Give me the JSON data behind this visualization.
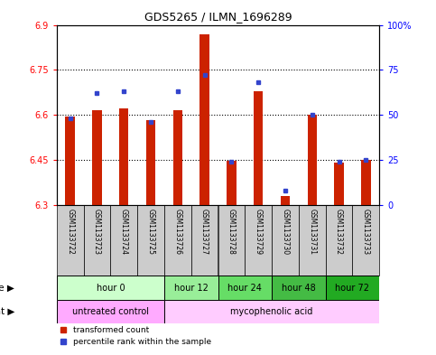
{
  "title": "GDS5265 / ILMN_1696289",
  "samples": [
    "GSM1133722",
    "GSM1133723",
    "GSM1133724",
    "GSM1133725",
    "GSM1133726",
    "GSM1133727",
    "GSM1133728",
    "GSM1133729",
    "GSM1133730",
    "GSM1133731",
    "GSM1133732",
    "GSM1133733"
  ],
  "red_values": [
    6.595,
    6.615,
    6.622,
    6.583,
    6.617,
    6.868,
    6.448,
    6.678,
    6.33,
    6.6,
    6.443,
    6.452
  ],
  "blue_values": [
    48,
    62,
    63,
    46,
    63,
    72,
    24,
    68,
    8,
    50,
    24,
    25
  ],
  "ylim_left": [
    6.3,
    6.9
  ],
  "ylim_right": [
    0,
    100
  ],
  "yticks_left": [
    6.3,
    6.45,
    6.6,
    6.75,
    6.9
  ],
  "yticks_right": [
    0,
    25,
    50,
    75,
    100
  ],
  "ytick_labels_left": [
    "6.3",
    "6.45",
    "6.6",
    "6.75",
    "6.9"
  ],
  "ytick_labels_right": [
    "0",
    "25",
    "50",
    "75",
    "100%"
  ],
  "bar_bottom": 6.3,
  "time_groups": [
    {
      "label": "hour 0",
      "start": 0,
      "end": 3,
      "color": "#ccffcc"
    },
    {
      "label": "hour 12",
      "start": 4,
      "end": 5,
      "color": "#99ee99"
    },
    {
      "label": "hour 24",
      "start": 6,
      "end": 7,
      "color": "#66dd66"
    },
    {
      "label": "hour 48",
      "start": 8,
      "end": 9,
      "color": "#44bb44"
    },
    {
      "label": "hour 72",
      "start": 10,
      "end": 11,
      "color": "#22aa22"
    }
  ],
  "agent_groups": [
    {
      "label": "untreated control",
      "start": 0,
      "end": 3,
      "color": "#ffaaff"
    },
    {
      "label": "mycophenolic acid",
      "start": 4,
      "end": 11,
      "color": "#ffccff"
    }
  ],
  "red_color": "#cc2200",
  "blue_color": "#3344cc",
  "sample_bg_color": "#cccccc",
  "bar_width": 0.35
}
